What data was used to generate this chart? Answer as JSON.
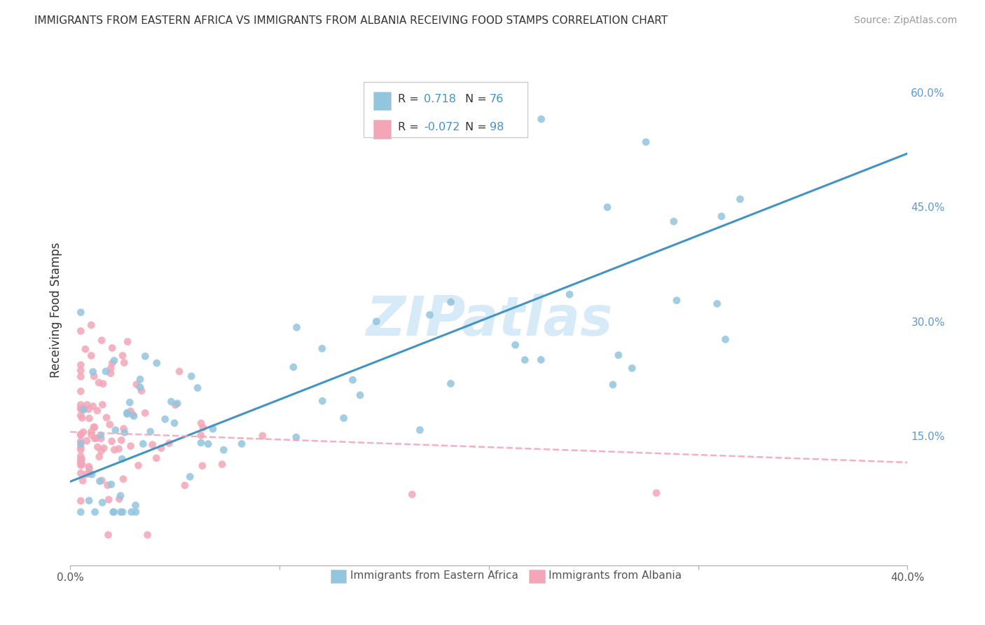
{
  "title": "IMMIGRANTS FROM EASTERN AFRICA VS IMMIGRANTS FROM ALBANIA RECEIVING FOOD STAMPS CORRELATION CHART",
  "source": "Source: ZipAtlas.com",
  "ylabel": "Receiving Food Stamps",
  "yticks": [
    0.0,
    0.15,
    0.3,
    0.45,
    0.6
  ],
  "ytick_labels": [
    "",
    "15.0%",
    "30.0%",
    "45.0%",
    "60.0%"
  ],
  "xlim": [
    0.0,
    0.4
  ],
  "ylim": [
    -0.02,
    0.65
  ],
  "blue_color": "#92c5de",
  "pink_color": "#f4a6b8",
  "blue_line_color": "#4393c3",
  "pink_line_color": "#f4a6b8",
  "watermark": "ZIPatlas",
  "R_blue": 0.718,
  "N_blue": 76,
  "R_pink": -0.072,
  "N_pink": 98
}
